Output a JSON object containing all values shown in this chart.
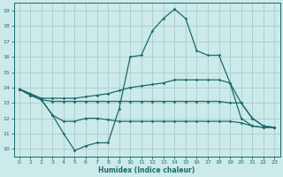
{
  "bg_color": "#cceaea",
  "grid_color": "#aacccc",
  "line_color": "#1a6b6b",
  "xlabel": "Humidex (Indice chaleur)",
  "xlim": [
    -0.5,
    23.5
  ],
  "ylim": [
    9.5,
    19.5
  ],
  "yticks": [
    10,
    11,
    12,
    13,
    14,
    15,
    16,
    17,
    18,
    19
  ],
  "xticks": [
    0,
    1,
    2,
    3,
    4,
    5,
    6,
    7,
    8,
    9,
    10,
    11,
    12,
    13,
    14,
    15,
    16,
    17,
    18,
    19,
    20,
    21,
    22,
    23
  ],
  "line1_x": [
    0,
    1,
    2,
    3,
    4,
    5,
    6,
    7,
    8,
    9,
    10,
    11,
    12,
    13,
    14,
    15,
    16,
    17,
    18,
    19,
    20,
    21,
    22,
    23
  ],
  "line1_y": [
    13.9,
    13.6,
    13.2,
    12.2,
    11.0,
    9.9,
    10.2,
    10.4,
    10.4,
    12.6,
    16.0,
    16.1,
    17.7,
    18.5,
    19.1,
    18.5,
    16.4,
    16.1,
    16.1,
    14.3,
    12.0,
    11.5,
    11.4,
    11.4
  ],
  "line2_x": [
    0,
    1,
    2,
    3,
    4,
    5,
    6,
    7,
    8,
    9,
    10,
    11,
    12,
    13,
    14,
    15,
    16,
    17,
    18,
    19,
    20,
    21,
    22,
    23
  ],
  "line2_y": [
    13.9,
    13.6,
    13.3,
    13.3,
    13.3,
    13.3,
    13.4,
    13.5,
    13.6,
    13.8,
    14.0,
    14.1,
    14.2,
    14.3,
    14.5,
    14.5,
    14.5,
    14.5,
    14.5,
    14.3,
    13.0,
    12.0,
    11.5,
    11.4
  ],
  "line3_x": [
    0,
    1,
    2,
    3,
    4,
    5,
    6,
    7,
    8,
    9,
    10,
    11,
    12,
    13,
    14,
    15,
    16,
    17,
    18,
    19,
    20,
    21,
    22,
    23
  ],
  "line3_y": [
    13.9,
    13.5,
    13.2,
    13.1,
    13.1,
    13.1,
    13.1,
    13.1,
    13.1,
    13.1,
    13.1,
    13.1,
    13.1,
    13.1,
    13.1,
    13.1,
    13.1,
    13.1,
    13.1,
    13.0,
    13.0,
    12.0,
    11.5,
    11.4
  ],
  "line4_x": [
    0,
    1,
    2,
    3,
    4,
    5,
    6,
    7,
    8,
    9,
    10,
    11,
    12,
    13,
    14,
    15,
    16,
    17,
    18,
    19,
    20,
    21,
    22,
    23
  ],
  "line4_y": [
    13.9,
    13.5,
    13.2,
    12.2,
    11.8,
    11.8,
    12.0,
    12.0,
    11.9,
    11.8,
    11.8,
    11.8,
    11.8,
    11.8,
    11.8,
    11.8,
    11.8,
    11.8,
    11.8,
    11.8,
    11.7,
    11.5,
    11.4,
    11.4
  ]
}
